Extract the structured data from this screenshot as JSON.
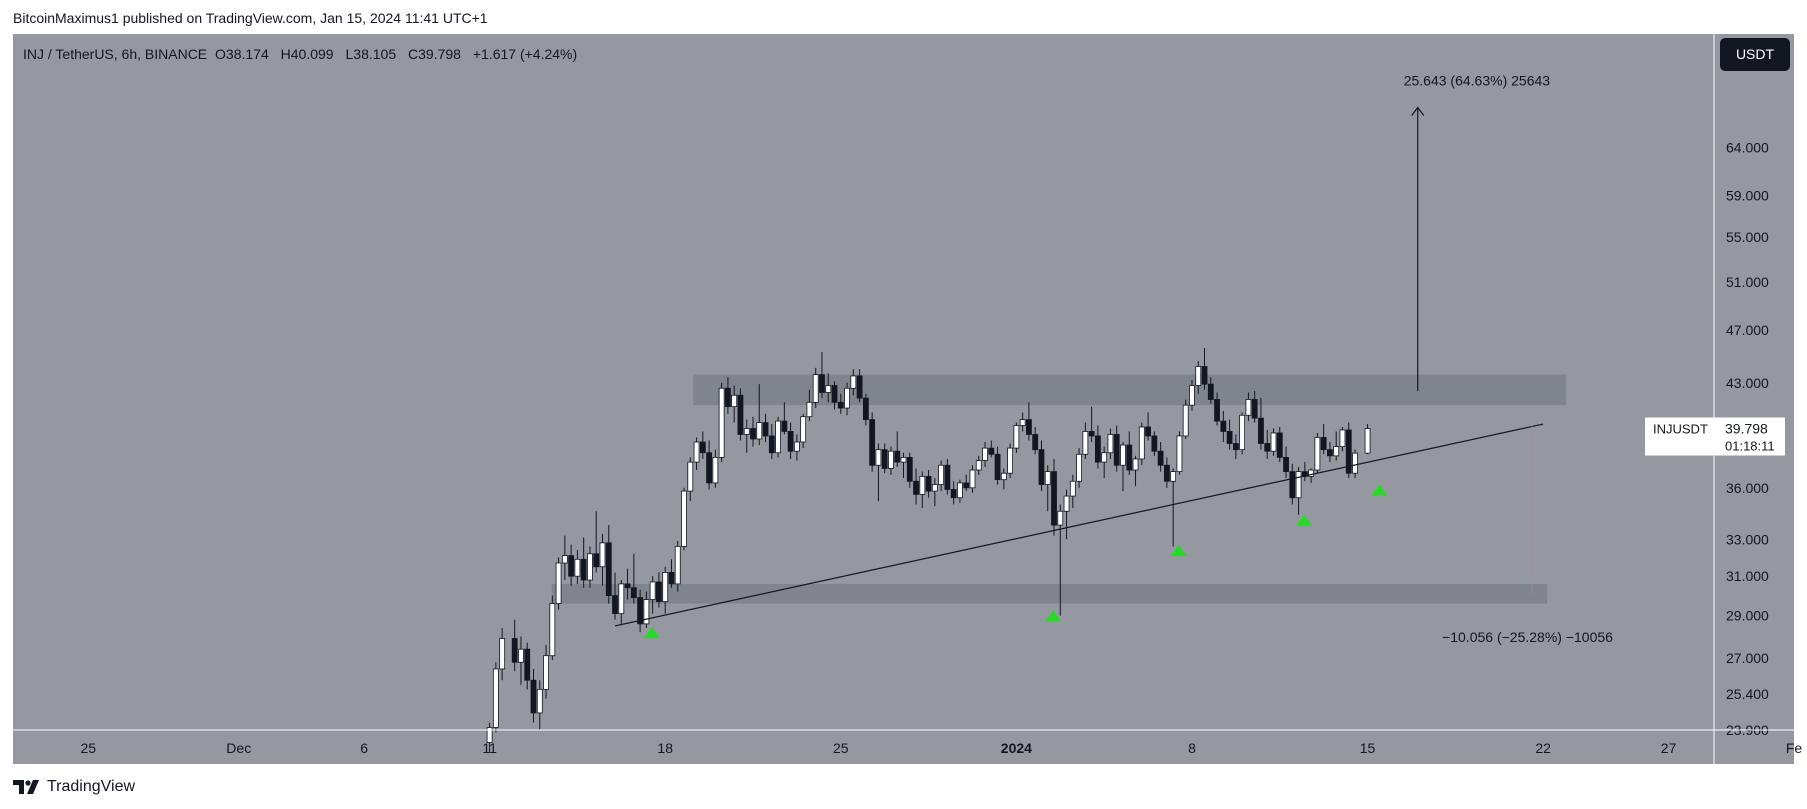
{
  "header": {
    "publish_line": "BitcoinMaximus1 published on TradingView.com, Jan 15, 2024 11:41 UTC+1"
  },
  "legend": {
    "symbol": "INJ / TetherUS, 6h, BINANCE",
    "o_key": "O",
    "o_val": "38.174",
    "h_key": "H",
    "h_val": "40.099",
    "l_key": "L",
    "l_val": "38.105",
    "c_key": "C",
    "c_val": "39.798",
    "change": "+1.617 (+4.24%)"
  },
  "currency_button": "USDT",
  "price_label": {
    "ticker": "INJUSDT",
    "price": "39.798",
    "countdown": "01:18:11"
  },
  "annotations": {
    "up_target": "25.643 (64.63%) 25643",
    "down_target": "−10.056 (−25.28%) −10056"
  },
  "footer": {
    "brand": "TradingView"
  },
  "colors": {
    "background": "#9598a1",
    "bull_candle": "#ffffff",
    "bear_candle": "#131722",
    "zone": "#7d8089",
    "marker": "#22dd22",
    "line": "#131722"
  },
  "chart_data": {
    "type": "candlestick",
    "y_axis": {
      "scale": "log",
      "ticks": [
        "64.000",
        "59.000",
        "55.000",
        "51.000",
        "47.000",
        "43.000",
        "36.000",
        "33.000",
        "31.000",
        "29.000",
        "27.000",
        "25.400",
        "23.900"
      ],
      "ylim": [
        23.9,
        72
      ]
    },
    "x_axis": {
      "ticks": [
        {
          "label": "25",
          "date": "2023-11-25"
        },
        {
          "label": "Dec",
          "date": "2023-12-01"
        },
        {
          "label": "6",
          "date": "2023-12-06"
        },
        {
          "label": "11",
          "date": "2023-12-11"
        },
        {
          "label": "18",
          "date": "2023-12-18"
        },
        {
          "label": "25",
          "date": "2023-12-25"
        },
        {
          "label": "2024",
          "date": "2024-01-01"
        },
        {
          "label": "8",
          "date": "2024-01-08"
        },
        {
          "label": "15",
          "date": "2024-01-15"
        },
        {
          "label": "22",
          "date": "2024-01-22"
        },
        {
          "label": "27",
          "date": "2024-01-27"
        },
        {
          "label": "Fe",
          "date": "2024-02-01"
        }
      ],
      "xlim": [
        "2023-11-22",
        "2024-02-01"
      ]
    },
    "resistance_zone": {
      "low": 41.4,
      "high": 43.6,
      "from": "2023-12-18",
      "to": "2024-01-22"
    },
    "support_zone": {
      "low": 29.6,
      "high": 30.6,
      "from": "2023-12-13",
      "to": "2024-01-22"
    },
    "ascending_support_line": {
      "start": [
        "2023-12-16",
        28.5
      ],
      "end": [
        "2024-01-22",
        40.1
      ]
    },
    "breakout_arrow": {
      "date": "2024-01-17",
      "from": 42.4,
      "to": 68.5
    },
    "breakdown_target_date": "2024-01-21",
    "support_touch_markers": [
      {
        "date": "2023-12-17",
        "value": 28.2
      },
      {
        "date": "2024-01-02",
        "value": 29.0
      },
      {
        "date": "2024-01-07",
        "value": 32.4
      },
      {
        "date": "2024-01-12",
        "value": 34.1
      },
      {
        "date": "2024-01-15",
        "value": 35.9
      }
    ],
    "candles": [
      [
        "2023-12-11",
        23.4,
        24.2,
        23.0,
        24.0
      ],
      [
        "2023-12-11",
        24.0,
        26.8,
        23.8,
        26.5
      ],
      [
        "2023-12-11",
        26.5,
        28.4,
        26.0,
        27.9
      ],
      [
        "2023-12-12",
        27.9,
        28.8,
        26.4,
        26.8
      ],
      [
        "2023-12-12",
        26.8,
        28.0,
        25.8,
        27.4
      ],
      [
        "2023-12-12",
        27.4,
        27.7,
        25.6,
        26.0
      ],
      [
        "2023-12-12",
        26.0,
        26.5,
        24.2,
        24.6
      ],
      [
        "2023-12-13",
        24.6,
        26.0,
        23.9,
        25.6
      ],
      [
        "2023-12-13",
        25.6,
        27.6,
        25.2,
        27.1
      ],
      [
        "2023-12-13",
        27.1,
        30.0,
        26.9,
        29.6
      ],
      [
        "2023-12-13",
        29.6,
        32.0,
        29.3,
        31.7
      ],
      [
        "2023-12-14",
        31.7,
        33.2,
        30.8,
        32.1
      ],
      [
        "2023-12-14",
        32.1,
        32.7,
        30.5,
        31.0
      ],
      [
        "2023-12-14",
        31.0,
        32.4,
        30.6,
        31.9
      ],
      [
        "2023-12-14",
        31.9,
        33.1,
        30.4,
        30.8
      ],
      [
        "2023-12-15",
        30.8,
        32.6,
        30.4,
        32.2
      ],
      [
        "2023-12-15",
        32.2,
        34.6,
        31.2,
        31.5
      ],
      [
        "2023-12-15",
        31.5,
        33.3,
        30.5,
        32.8
      ],
      [
        "2023-12-15",
        32.8,
        33.8,
        29.6,
        30.0
      ],
      [
        "2023-12-16",
        30.0,
        31.2,
        28.8,
        29.1
      ],
      [
        "2023-12-16",
        29.1,
        30.8,
        28.6,
        30.6
      ],
      [
        "2023-12-16",
        30.6,
        31.4,
        29.8,
        30.4
      ],
      [
        "2023-12-16",
        30.4,
        32.2,
        29.6,
        29.9
      ],
      [
        "2023-12-17",
        29.9,
        30.3,
        28.2,
        28.6
      ],
      [
        "2023-12-17",
        28.6,
        30.2,
        28.4,
        29.8
      ],
      [
        "2023-12-17",
        29.8,
        31.0,
        29.1,
        30.7
      ],
      [
        "2023-12-17",
        30.7,
        31.2,
        29.4,
        29.7
      ],
      [
        "2023-12-18",
        29.7,
        31.5,
        29.1,
        31.2
      ],
      [
        "2023-12-18",
        31.2,
        31.9,
        30.4,
        30.6
      ],
      [
        "2023-12-18",
        30.6,
        32.9,
        30.2,
        32.6
      ],
      [
        "2023-12-18",
        32.6,
        36.0,
        32.4,
        35.8
      ],
      [
        "2023-12-19",
        35.8,
        37.9,
        35.2,
        37.6
      ],
      [
        "2023-12-19",
        37.6,
        39.2,
        37.1,
        38.9
      ],
      [
        "2023-12-19",
        38.9,
        39.6,
        37.8,
        38.2
      ],
      [
        "2023-12-19",
        38.2,
        39.0,
        35.9,
        36.3
      ],
      [
        "2023-12-20",
        36.3,
        38.4,
        36.0,
        37.9
      ],
      [
        "2023-12-20",
        37.9,
        43.0,
        37.6,
        42.6
      ],
      [
        "2023-12-20",
        42.6,
        43.4,
        40.8,
        41.3
      ],
      [
        "2023-12-20",
        41.3,
        42.8,
        40.2,
        42.1
      ],
      [
        "2023-12-21",
        42.1,
        42.6,
        39.0,
        39.4
      ],
      [
        "2023-12-21",
        39.4,
        40.4,
        38.2,
        39.8
      ],
      [
        "2023-12-21",
        39.8,
        40.6,
        38.6,
        39.1
      ],
      [
        "2023-12-21",
        39.1,
        42.9,
        38.7,
        40.2
      ],
      [
        "2023-12-22",
        40.2,
        40.8,
        38.9,
        39.3
      ],
      [
        "2023-12-22",
        39.3,
        40.1,
        37.8,
        38.2
      ],
      [
        "2023-12-22",
        38.2,
        40.6,
        37.9,
        40.3
      ],
      [
        "2023-12-22",
        40.3,
        41.6,
        39.4,
        39.6
      ],
      [
        "2023-12-23",
        39.6,
        40.2,
        37.8,
        38.3
      ],
      [
        "2023-12-23",
        38.3,
        39.4,
        37.7,
        38.9
      ],
      [
        "2023-12-23",
        38.9,
        40.8,
        38.5,
        40.6
      ],
      [
        "2023-12-23",
        40.6,
        42.5,
        40.3,
        41.6
      ],
      [
        "2023-12-24",
        41.6,
        44.1,
        41.2,
        43.6
      ],
      [
        "2023-12-24",
        43.6,
        45.3,
        41.9,
        42.3
      ],
      [
        "2023-12-24",
        42.3,
        43.7,
        41.6,
        42.8
      ],
      [
        "2023-12-24",
        42.8,
        43.1,
        41.1,
        41.6
      ],
      [
        "2023-12-25",
        41.6,
        42.2,
        40.8,
        41.2
      ],
      [
        "2023-12-25",
        41.2,
        43.0,
        40.7,
        42.6
      ],
      [
        "2023-12-25",
        42.6,
        44.0,
        42.1,
        43.5
      ],
      [
        "2023-12-25",
        43.5,
        44.0,
        41.6,
        41.9
      ],
      [
        "2023-12-26",
        41.9,
        42.2,
        40.0,
        40.4
      ],
      [
        "2023-12-26",
        40.4,
        40.9,
        37.0,
        37.4
      ],
      [
        "2023-12-26",
        37.4,
        38.8,
        35.2,
        38.4
      ],
      [
        "2023-12-26",
        38.4,
        38.8,
        36.9,
        37.2
      ],
      [
        "2023-12-27",
        37.2,
        38.6,
        36.8,
        38.3
      ],
      [
        "2023-12-27",
        38.3,
        39.6,
        37.3,
        37.6
      ],
      [
        "2023-12-27",
        37.6,
        38.2,
        36.6,
        37.9
      ],
      [
        "2023-12-27",
        37.9,
        38.2,
        36.0,
        36.4
      ],
      [
        "2023-12-28",
        36.4,
        37.2,
        35.0,
        35.6
      ],
      [
        "2023-12-28",
        35.6,
        37.0,
        34.8,
        36.7
      ],
      [
        "2023-12-28",
        36.7,
        37.1,
        35.4,
        35.8
      ],
      [
        "2023-12-28",
        35.8,
        36.6,
        34.9,
        36.2
      ],
      [
        "2023-12-29",
        36.2,
        37.7,
        35.8,
        37.4
      ],
      [
        "2023-12-29",
        37.4,
        37.8,
        35.6,
        35.9
      ],
      [
        "2023-12-29",
        35.9,
        36.4,
        35.0,
        35.4
      ],
      [
        "2023-12-29",
        35.4,
        36.5,
        35.1,
        36.3
      ],
      [
        "2023-12-30",
        36.3,
        36.8,
        35.8,
        36.0
      ],
      [
        "2023-12-30",
        36.0,
        37.4,
        35.7,
        37.1
      ],
      [
        "2023-12-30",
        37.1,
        38.0,
        36.8,
        37.7
      ],
      [
        "2023-12-30",
        37.7,
        38.9,
        37.3,
        38.5
      ],
      [
        "2023-12-31",
        38.5,
        39.0,
        37.9,
        38.1
      ],
      [
        "2023-12-31",
        38.1,
        38.6,
        36.2,
        36.5
      ],
      [
        "2023-12-31",
        36.5,
        37.2,
        35.9,
        36.9
      ],
      [
        "2023-12-31",
        36.9,
        38.8,
        36.6,
        38.5
      ],
      [
        "2024-01-01",
        38.5,
        40.2,
        38.2,
        40.0
      ],
      [
        "2024-01-01",
        40.0,
        40.9,
        39.6,
        40.4
      ],
      [
        "2024-01-01",
        40.4,
        41.6,
        39.0,
        39.4
      ],
      [
        "2024-01-01",
        39.4,
        39.9,
        38.1,
        38.4
      ],
      [
        "2024-01-02",
        38.4,
        39.0,
        35.8,
        36.2
      ],
      [
        "2024-01-02",
        36.2,
        37.4,
        34.6,
        37.0
      ],
      [
        "2024-01-02",
        37.0,
        37.8,
        33.2,
        33.8
      ],
      [
        "2024-01-02",
        33.8,
        35.0,
        29.0,
        34.6
      ],
      [
        "2024-01-03",
        34.6,
        35.9,
        33.0,
        35.5
      ],
      [
        "2024-01-03",
        35.5,
        36.8,
        34.8,
        36.4
      ],
      [
        "2024-01-03",
        36.4,
        38.5,
        36.0,
        38.1
      ],
      [
        "2024-01-03",
        38.1,
        40.2,
        37.8,
        39.6
      ],
      [
        "2024-01-04",
        39.6,
        41.3,
        38.9,
        39.3
      ],
      [
        "2024-01-04",
        39.3,
        40.0,
        37.2,
        37.6
      ],
      [
        "2024-01-04",
        37.6,
        38.6,
        36.6,
        38.2
      ],
      [
        "2024-01-04",
        38.2,
        39.8,
        37.8,
        39.4
      ],
      [
        "2024-01-05",
        39.4,
        40.0,
        37.0,
        37.4
      ],
      [
        "2024-01-05",
        37.4,
        38.9,
        35.8,
        38.7
      ],
      [
        "2024-01-05",
        38.7,
        39.6,
        36.8,
        37.1
      ],
      [
        "2024-01-05",
        37.1,
        38.0,
        36.1,
        37.8
      ],
      [
        "2024-01-06",
        37.8,
        40.2,
        37.4,
        39.9
      ],
      [
        "2024-01-06",
        39.9,
        40.9,
        39.0,
        39.3
      ],
      [
        "2024-01-06",
        39.3,
        39.6,
        38.0,
        38.3
      ],
      [
        "2024-01-06",
        38.3,
        38.9,
        37.0,
        37.4
      ],
      [
        "2024-01-07",
        37.4,
        37.9,
        36.0,
        36.4
      ],
      [
        "2024-01-07",
        36.4,
        37.2,
        32.6,
        37.0
      ],
      [
        "2024-01-07",
        37.0,
        39.6,
        36.8,
        39.3
      ],
      [
        "2024-01-07",
        39.3,
        41.8,
        39.1,
        41.4
      ],
      [
        "2024-01-08",
        41.4,
        43.2,
        41.0,
        42.8
      ],
      [
        "2024-01-08",
        42.8,
        44.6,
        42.2,
        44.2
      ],
      [
        "2024-01-08",
        44.2,
        45.6,
        42.5,
        42.9
      ],
      [
        "2024-01-08",
        42.9,
        43.4,
        41.5,
        41.8
      ],
      [
        "2024-01-09",
        41.8,
        42.3,
        40.0,
        40.3
      ],
      [
        "2024-01-09",
        40.3,
        41.0,
        38.9,
        39.6
      ],
      [
        "2024-01-09",
        39.6,
        40.4,
        38.4,
        38.8
      ],
      [
        "2024-01-09",
        38.8,
        39.4,
        37.8,
        38.4
      ],
      [
        "2024-01-10",
        38.4,
        40.9,
        38.1,
        40.7
      ],
      [
        "2024-01-10",
        40.7,
        42.3,
        40.3,
        41.8
      ],
      [
        "2024-01-10",
        41.8,
        42.4,
        40.2,
        40.5
      ],
      [
        "2024-01-10",
        40.5,
        41.9,
        38.4,
        38.8
      ],
      [
        "2024-01-11",
        38.8,
        39.7,
        37.8,
        38.3
      ],
      [
        "2024-01-11",
        38.3,
        39.8,
        38.0,
        39.5
      ],
      [
        "2024-01-11",
        39.5,
        39.9,
        37.6,
        37.9
      ],
      [
        "2024-01-11",
        37.9,
        38.6,
        36.6,
        37.0
      ],
      [
        "2024-01-12",
        37.0,
        37.5,
        35.0,
        35.4
      ],
      [
        "2024-01-12",
        35.4,
        37.3,
        34.4,
        37.0
      ],
      [
        "2024-01-12",
        37.0,
        37.6,
        36.4,
        36.7
      ],
      [
        "2024-01-12",
        36.7,
        37.2,
        36.3,
        37.1
      ],
      [
        "2024-01-13",
        37.1,
        39.5,
        36.9,
        39.2
      ],
      [
        "2024-01-13",
        39.2,
        40.1,
        38.1,
        38.4
      ],
      [
        "2024-01-13",
        38.4,
        38.9,
        37.6,
        38.0
      ],
      [
        "2024-01-13",
        38.0,
        39.6,
        37.7,
        38.6
      ],
      [
        "2024-01-14",
        38.6,
        39.9,
        38.3,
        39.7
      ],
      [
        "2024-01-14",
        39.7,
        40.2,
        36.6,
        36.9
      ],
      [
        "2024-01-14",
        36.9,
        38.4,
        36.6,
        38.174
      ],
      [
        "2024-01-15",
        38.174,
        40.099,
        38.105,
        39.798
      ]
    ]
  }
}
